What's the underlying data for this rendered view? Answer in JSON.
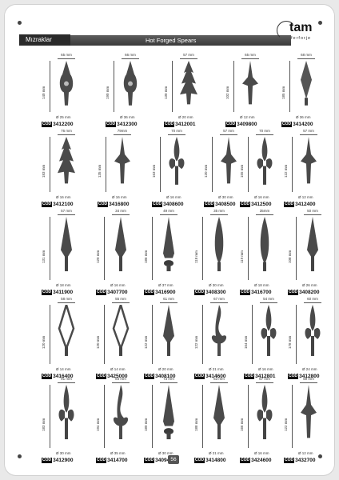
{
  "header": {
    "tab_label": "Mızraklar",
    "subtitle": "Hot Forged Spears",
    "logo_name": "tam",
    "logo_sub": "ferforje"
  },
  "code_prefix": "COD",
  "page_number": "56",
  "products": [
    {
      "code": "3412200",
      "width": "65 mm",
      "height": "140 mm",
      "diameter": "Ø 25 mm",
      "shape": "ornate"
    },
    {
      "code": "3412300",
      "width": "66 mm",
      "height": "190 mm",
      "diameter": "Ø 36 mm",
      "shape": "ornate"
    },
    {
      "code": "3412001",
      "width": "57 mm",
      "height": "130 mm",
      "diameter": "Ø 20 mm",
      "shape": "tree"
    },
    {
      "code": "3409800",
      "width": "65 mm",
      "height": "102 mm",
      "diameter": "Ø 12 mm",
      "shape": "cross"
    },
    {
      "code": "3414200",
      "width": "68 mm",
      "height": "185 mm",
      "diameter": "Ø 36 mm",
      "shape": "diamond"
    },
    {
      "code": "3412100",
      "width": "76 mm",
      "height": "183 mm",
      "diameter": "Ø 16 mm",
      "shape": "tree"
    },
    {
      "code": "3416800",
      "width": "79mm",
      "height": "135 mm",
      "diameter": "Ø 16 mm",
      "shape": "cross"
    },
    {
      "code": "3408600",
      "width": "70 mm",
      "height": "163 mm",
      "diameter": "Ø 16 mm",
      "shape": "lily"
    },
    {
      "code": "3408500",
      "width": "57 mm",
      "height": "120 mm",
      "diameter": "Ø 30 mm",
      "shape": "cross"
    },
    {
      "code": "3412500",
      "width": "70 mm",
      "height": "155 mm",
      "diameter": "Ø 16 mm",
      "shape": "lily"
    },
    {
      "code": "3412400",
      "width": "57 mm",
      "height": "122 mm",
      "diameter": "Ø 12 mm",
      "shape": "cross"
    },
    {
      "code": "3411900",
      "width": "57 mm",
      "height": "131 mm",
      "diameter": "Ø 18 mm",
      "shape": "spear"
    },
    {
      "code": "3407700",
      "width": "34 mm",
      "height": "120 mm",
      "diameter": "Ø 16 mm",
      "shape": "spear"
    },
    {
      "code": "3416900",
      "width": "49 mm",
      "height": "186 mm",
      "diameter": "Ø 37 mm",
      "shape": "spike"
    },
    {
      "code": "3408300",
      "width": "35 mm",
      "height": "118 mm",
      "diameter": "Ø 30 mm",
      "shape": "bud"
    },
    {
      "code": "3416700",
      "width": "35mm",
      "height": "119 mm",
      "diameter": "Ø 18 mm",
      "shape": "bud"
    },
    {
      "code": "3408200",
      "width": "50 mm",
      "height": "108 mm",
      "diameter": "Ø 26 mm",
      "shape": "spear"
    },
    {
      "code": "3416400",
      "width": "58 mm",
      "height": "120 mm",
      "diameter": "Ø 14 mm",
      "shape": "loop"
    },
    {
      "code": "3425000",
      "width": "55 mm",
      "height": "120 mm",
      "diameter": "Ø 14 mm",
      "shape": "loop"
    },
    {
      "code": "3408100",
      "width": "61 mm",
      "height": "122 mm",
      "diameter": "Ø 20 mm",
      "shape": "spear"
    },
    {
      "code": "3414600",
      "width": "67 mm",
      "height": "122 mm",
      "diameter": "Ø 21 mm",
      "shape": "flame"
    },
    {
      "code": "3412801",
      "width": "54 mm",
      "height": "164 mm",
      "diameter": "Ø 16 mm",
      "shape": "lily"
    },
    {
      "code": "3412800",
      "width": "60 mm",
      "height": "178 mm",
      "diameter": "Ø 24 mm",
      "shape": "lily"
    },
    {
      "code": "3412900",
      "width": "91 mm",
      "height": "183 mm",
      "diameter": "Ø 30 mm",
      "shape": "lily"
    },
    {
      "code": "3414700",
      "width": "84 mm",
      "height": "194 mm",
      "diameter": "Ø 35 mm",
      "shape": "flame"
    },
    {
      "code": "3409400",
      "width": "73 mm",
      "height": "180 mm",
      "diameter": "Ø 30 mm",
      "shape": "spike"
    },
    {
      "code": "3414800",
      "width": "63 mm",
      "height": "188 mm",
      "diameter": "Ø 21 mm",
      "shape": "spear"
    },
    {
      "code": "3424600",
      "width": "67 mm",
      "height": "166 mm",
      "diameter": "Ø 16 mm",
      "shape": "lily"
    },
    {
      "code": "3432700",
      "width": "59 mm",
      "height": "122 mm",
      "diameter": "Ø 12 mm",
      "shape": "cross"
    }
  ]
}
